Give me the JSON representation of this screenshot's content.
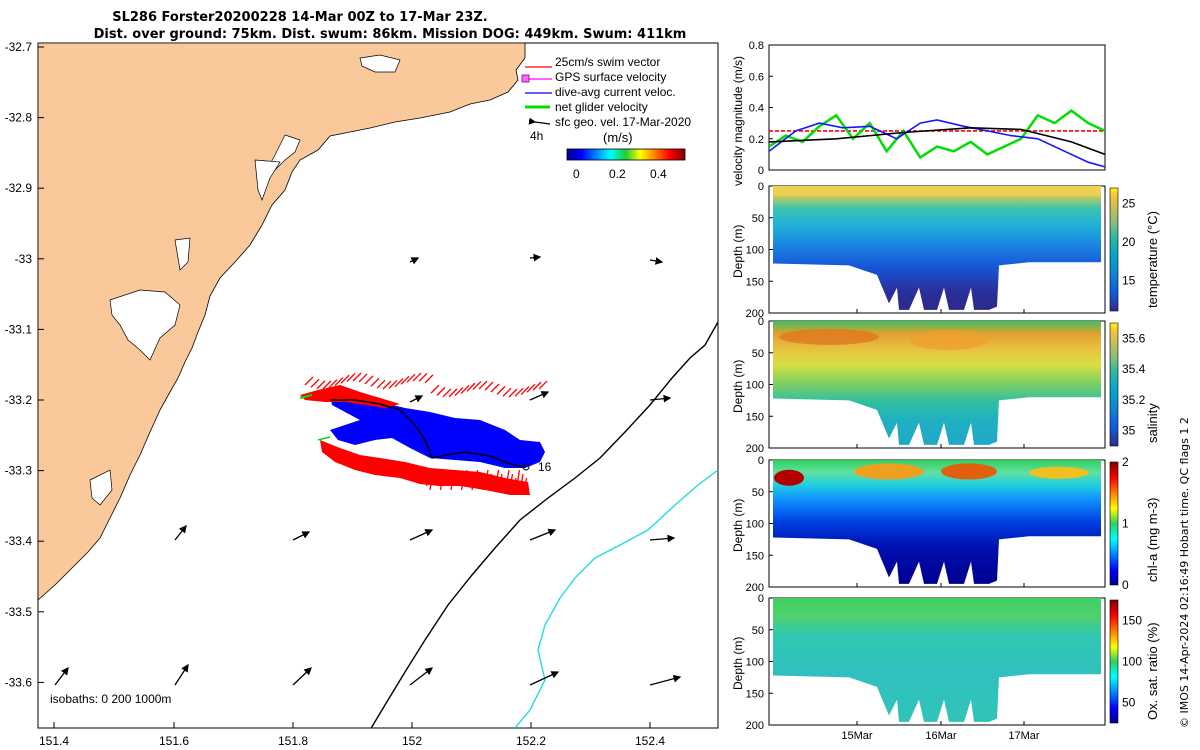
{
  "title_line1": "SL286 Forster20200228 14-Mar 00Z to 17-Mar 23Z.",
  "title_line2": "Dist. over ground: 75km. Dist. swum: 86km. Mission DOG: 449km. Swum: 411km",
  "credit": "© IMOS 14-Apr-2024 02:16:49 Hobart time. QC flags 1  2",
  "colors": {
    "land": "#f9c89b",
    "glider_track": "#0000ff",
    "swim_vector": "#ff0000",
    "gps_velocity": "#ff00ff",
    "net_velocity": "#00dd00",
    "isobath_200": "#000000",
    "isobath_1000": "#22dddd"
  },
  "map": {
    "legend": {
      "swim": "25cm/s swim vector",
      "gps": "GPS surface velocity",
      "dive": "dive-avg current veloc.",
      "net": "net glider velocity",
      "sfc": "sfc geo. vel. 17-Mar-2020",
      "time_label": "4h",
      "units": "(m/s)",
      "cbar_ticks": [
        "0",
        "0.2",
        "0.4"
      ]
    },
    "track_end_label": "16",
    "isobath_label": "isobaths: 0   200  1000m",
    "x_ticks": [
      "151.4",
      "151.6",
      "151.8",
      "152",
      "152.2",
      "152.4"
    ],
    "y_ticks": [
      "-32.7",
      "-32.8",
      "-32.9",
      "-33",
      "-33.1",
      "-33.2",
      "-33.3",
      "-33.4",
      "-33.5",
      "-33.6"
    ]
  },
  "chart_data": [
    {
      "type": "line",
      "title": "",
      "ylabel": "velocity magnitude (m/s)",
      "xlabel": "",
      "ylim": [
        0,
        0.8
      ],
      "y_ticks": [
        "0.8",
        "0.6",
        "0.4",
        "0.2",
        "0"
      ],
      "series": [
        {
          "name": "swim speed",
          "color": "#ff0000",
          "x": [
            0,
            0.2,
            0.4,
            0.6,
            0.8,
            1.0
          ],
          "y": [
            0.25,
            0.25,
            0.25,
            0.25,
            0.25,
            0.25
          ]
        },
        {
          "name": "net glider velocity",
          "color": "#00dd00",
          "x": [
            0,
            0.05,
            0.1,
            0.15,
            0.2,
            0.25,
            0.3,
            0.35,
            0.4,
            0.45,
            0.5,
            0.55,
            0.6,
            0.65,
            0.7,
            0.75,
            0.8,
            0.85,
            0.9,
            0.95,
            1.0
          ],
          "y": [
            0.15,
            0.22,
            0.18,
            0.28,
            0.35,
            0.2,
            0.3,
            0.12,
            0.25,
            0.08,
            0.15,
            0.12,
            0.18,
            0.1,
            0.15,
            0.2,
            0.35,
            0.3,
            0.38,
            0.3,
            0.25
          ]
        },
        {
          "name": "dive-avg current",
          "color": "#1515ff",
          "x": [
            0,
            0.08,
            0.15,
            0.22,
            0.3,
            0.38,
            0.45,
            0.5,
            0.58,
            0.65,
            0.72,
            0.8,
            0.88,
            0.95,
            1.0
          ],
          "y": [
            0.12,
            0.25,
            0.3,
            0.27,
            0.28,
            0.2,
            0.3,
            0.32,
            0.28,
            0.25,
            0.22,
            0.2,
            0.12,
            0.05,
            0.02
          ]
        },
        {
          "name": "sfc geo. vel.",
          "color": "#000000",
          "x": [
            0,
            0.2,
            0.4,
            0.6,
            0.75,
            0.9,
            1.0
          ],
          "y": [
            0.18,
            0.2,
            0.24,
            0.27,
            0.26,
            0.18,
            0.1
          ]
        }
      ]
    },
    {
      "type": "heatmap",
      "ylabel": "Depth (m)",
      "clabel": "temperature (°C)",
      "ylim": [
        0,
        200
      ],
      "y_ticks": [
        "0",
        "50",
        "100",
        "150",
        "200"
      ],
      "cbar_range": [
        11,
        27
      ],
      "cbar_ticks": [
        "25",
        "20",
        "15"
      ],
      "x_tick_labels": [
        "15Mar",
        "16Mar",
        "17Mar"
      ]
    },
    {
      "type": "heatmap",
      "ylabel": "Depth (m)",
      "clabel": "salinity",
      "ylim": [
        0,
        200
      ],
      "y_ticks": [
        "0",
        "50",
        "100",
        "150",
        "200"
      ],
      "cbar_range": [
        34.9,
        35.7
      ],
      "cbar_ticks": [
        "35.6",
        "35.4",
        "35.2",
        "35"
      ],
      "x_tick_labels": [
        "15Mar",
        "16Mar",
        "17Mar"
      ]
    },
    {
      "type": "heatmap",
      "ylabel": "Depth (m)",
      "clabel": "chl-a (mg m-3)",
      "ylim": [
        0,
        200
      ],
      "y_ticks": [
        "0",
        "50",
        "100",
        "150",
        "200"
      ],
      "cbar_range": [
        0,
        2
      ],
      "cbar_ticks": [
        "2",
        "1",
        "0"
      ],
      "x_tick_labels": [
        "15Mar",
        "16Mar",
        "17Mar"
      ]
    },
    {
      "type": "heatmap",
      "ylabel": "Depth (m)",
      "clabel": "Ox. sat. ratio (%)",
      "ylim": [
        0,
        200
      ],
      "y_ticks": [
        "0",
        "50",
        "100",
        "150",
        "200"
      ],
      "cbar_range": [
        25,
        175
      ],
      "cbar_ticks": [
        "150",
        "100",
        "50"
      ],
      "x_tick_labels": [
        "15Mar",
        "16Mar",
        "17Mar"
      ]
    }
  ]
}
